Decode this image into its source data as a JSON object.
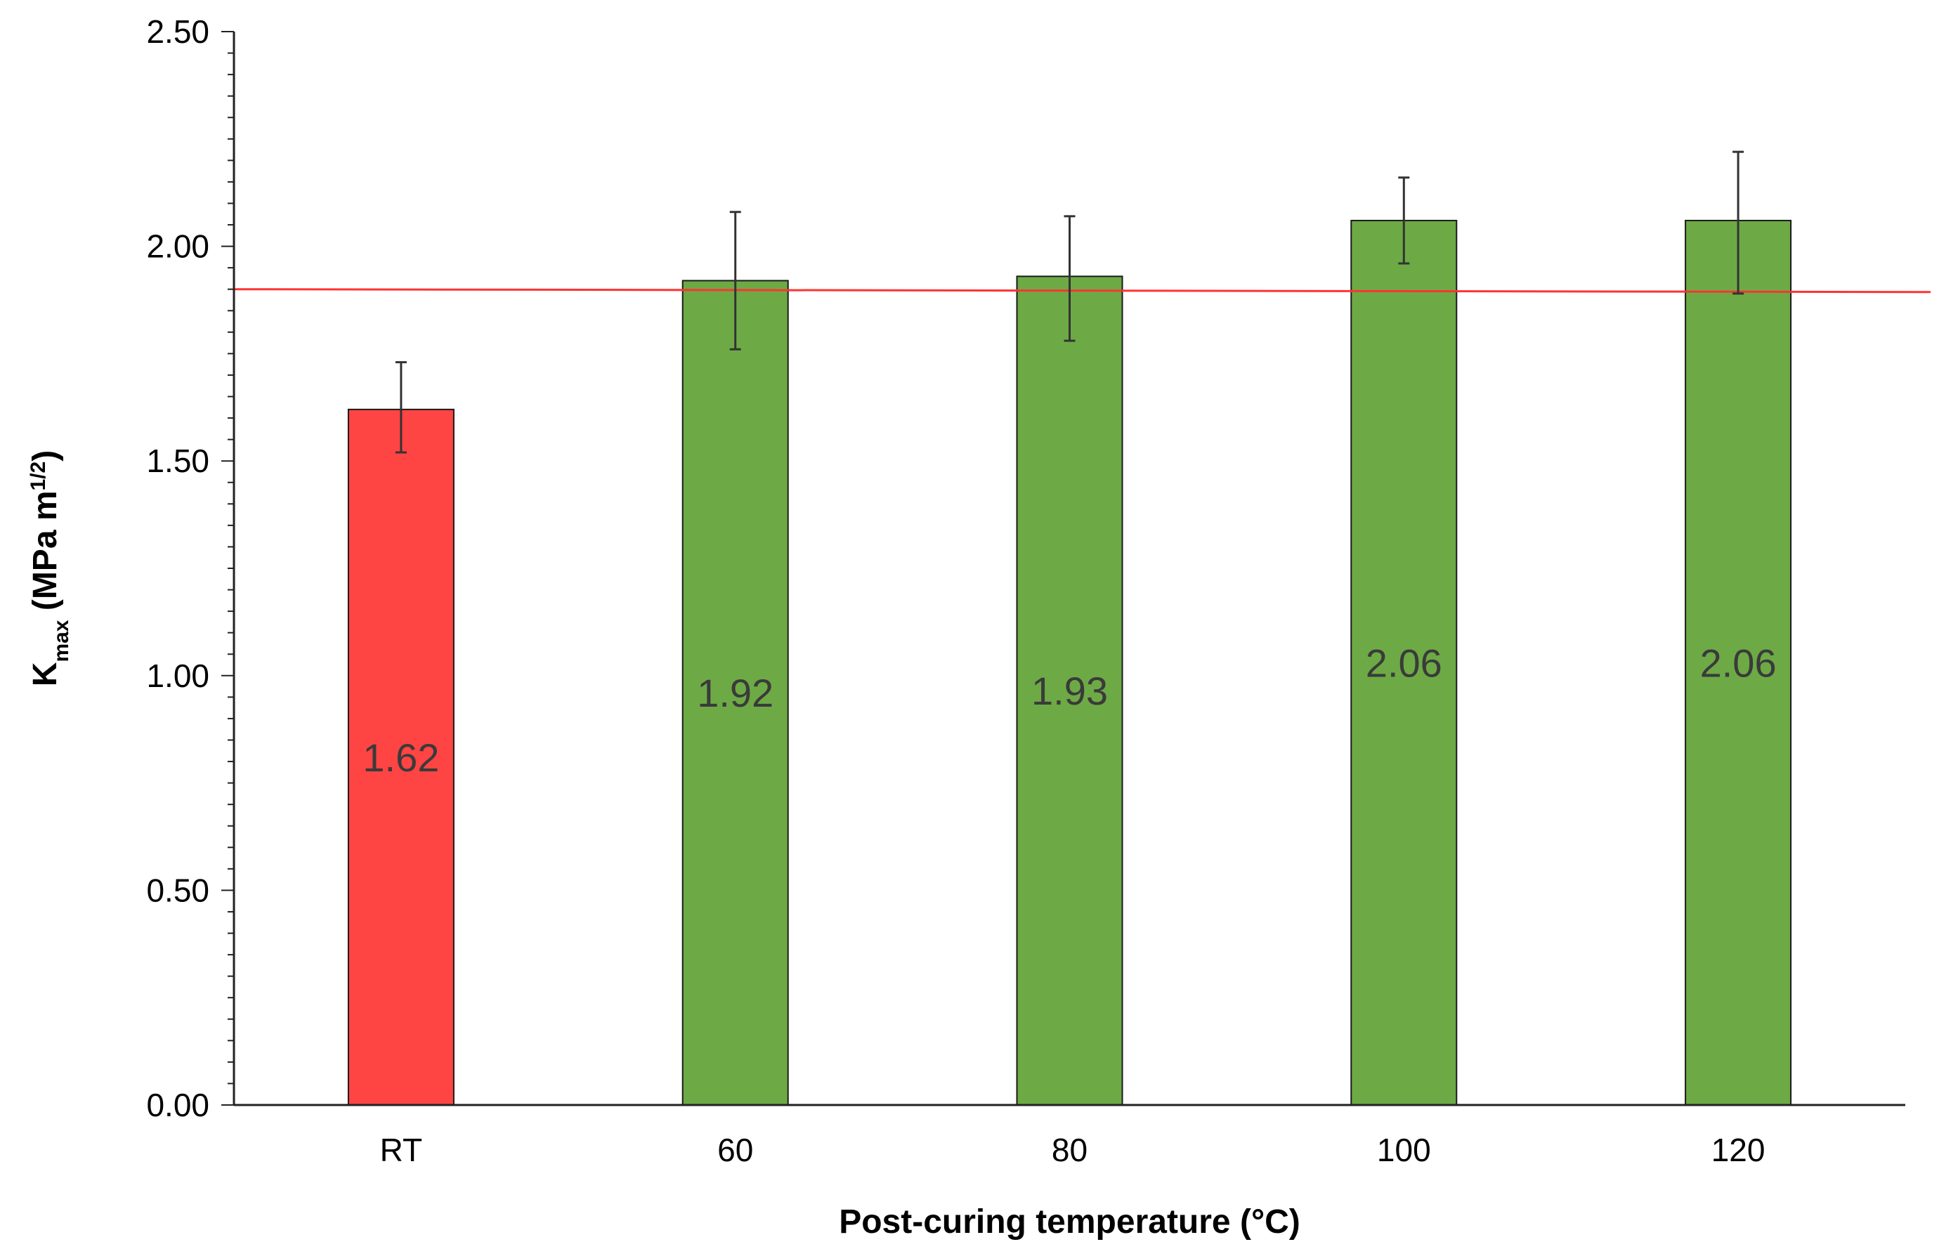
{
  "chart_data": {
    "type": "bar",
    "categories": [
      "RT",
      "60",
      "80",
      "100",
      "120"
    ],
    "values": [
      1.62,
      1.92,
      1.93,
      2.06,
      2.06
    ],
    "error_plus": [
      0.11,
      0.16,
      0.14,
      0.1,
      0.16
    ],
    "error_minus": [
      0.1,
      0.16,
      0.15,
      0.1,
      0.17
    ],
    "data_labels": [
      "1.62",
      "1.92",
      "1.93",
      "2.06",
      "2.06"
    ],
    "bar_colors": [
      "#FF4444",
      "#6DAA45",
      "#6DAA45",
      "#6DAA45",
      "#6DAA45"
    ],
    "reference_line": {
      "value": 1.9,
      "color": "#FF3333"
    },
    "xlabel": "Post-curing temperature (°C)",
    "ylabel": {
      "main": "K",
      "sub": "max",
      "unit_prefix": " (MPa m",
      "sup": "1/2",
      "unit_suffix": ")"
    },
    "ylim": [
      0,
      2.5
    ],
    "yticks": [
      "0.00",
      "0.50",
      "1.00",
      "1.50",
      "2.00",
      "2.50"
    ],
    "grid": false,
    "legend": "none"
  }
}
